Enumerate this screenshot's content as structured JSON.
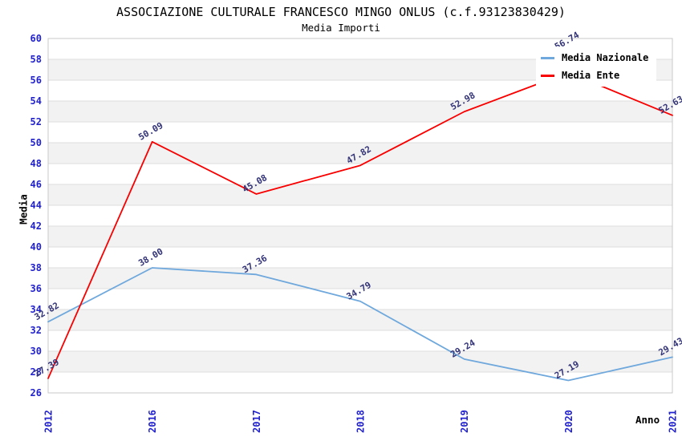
{
  "chart_data": {
    "type": "line",
    "title": "ASSOCIAZIONE CULTURALE FRANCESCO MINGO ONLUS (c.f.93123830429)",
    "subtitle": "Media Importi",
    "xlabel": "Anno",
    "ylabel": "Media",
    "categories": [
      "2012",
      "2016",
      "2017",
      "2018",
      "2019",
      "2020",
      "2021"
    ],
    "series": [
      {
        "name": "Media Nazionale",
        "color": "#6FA8DC",
        "values": [
          32.82,
          38.0,
          37.36,
          34.79,
          29.24,
          27.19,
          29.43
        ]
      },
      {
        "name": "Media Ente",
        "color": "#F80000",
        "values": [
          27.39,
          50.09,
          45.08,
          47.82,
          52.98,
          56.74,
          52.63
        ]
      }
    ],
    "ylim": [
      26,
      60
    ],
    "ytick_step": 2,
    "grid": "horizontal-bands",
    "legend_position": "top-right",
    "colors": {
      "tick_label": "#2222CC",
      "data_label": "#333377",
      "band": "#F2F2F2",
      "gridline": "#DDDDDD",
      "plot_border": "#C9C9C9"
    }
  }
}
